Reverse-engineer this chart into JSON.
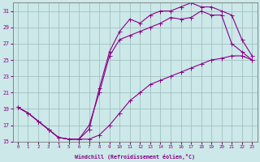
{
  "xlabel": "Windchill (Refroidissement éolien,°C)",
  "bg_color": "#cce8e8",
  "line_color": "#880088",
  "grid_color": "#99bbbb",
  "xlim": [
    -0.5,
    23.5
  ],
  "ylim": [
    15,
    32
  ],
  "xticks": [
    0,
    1,
    2,
    3,
    4,
    5,
    6,
    7,
    8,
    9,
    10,
    11,
    12,
    13,
    14,
    15,
    16,
    17,
    18,
    19,
    20,
    21,
    22,
    23
  ],
  "yticks": [
    15,
    17,
    19,
    21,
    23,
    25,
    27,
    29,
    31
  ],
  "curve1_x": [
    0,
    1,
    2,
    3,
    4,
    5,
    6,
    7,
    8,
    9,
    10,
    11,
    12,
    13,
    14,
    15,
    16,
    17,
    18,
    19,
    20,
    21,
    22,
    23
  ],
  "curve1_y": [
    19.2,
    18.5,
    17.5,
    16.5,
    15.5,
    15.3,
    15.3,
    15.3,
    15.8,
    17.0,
    18.5,
    20.0,
    21.0,
    22.0,
    22.5,
    23.0,
    23.5,
    24.0,
    24.5,
    25.0,
    25.2,
    25.5,
    25.5,
    25.0
  ],
  "curve2_x": [
    0,
    1,
    2,
    3,
    4,
    5,
    6,
    7,
    8,
    9,
    10,
    11,
    12,
    13,
    14,
    15,
    16,
    17,
    18,
    19,
    20,
    21,
    22,
    23
  ],
  "curve2_y": [
    19.2,
    18.5,
    17.5,
    16.5,
    15.5,
    15.3,
    15.3,
    17.0,
    21.0,
    25.5,
    27.5,
    28.0,
    28.5,
    29.0,
    29.5,
    30.2,
    30.0,
    30.2,
    31.0,
    30.5,
    30.5,
    27.0,
    26.0,
    25.0
  ],
  "curve3_x": [
    0,
    1,
    2,
    3,
    4,
    5,
    6,
    7,
    8,
    9,
    10,
    11,
    12,
    13,
    14,
    15,
    16,
    17,
    18,
    19,
    20,
    21,
    22,
    23
  ],
  "curve3_y": [
    19.2,
    18.5,
    17.5,
    16.5,
    15.5,
    15.3,
    15.3,
    16.5,
    21.5,
    26.0,
    28.5,
    30.0,
    29.5,
    30.5,
    31.0,
    31.0,
    31.5,
    32.0,
    31.5,
    31.5,
    31.0,
    30.5,
    27.5,
    25.5
  ]
}
